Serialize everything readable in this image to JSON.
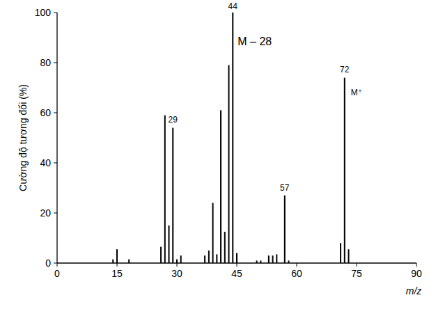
{
  "chart_data": {
    "type": "bar",
    "x_label": "m/z",
    "y_label": "Cường độ tương đối (%)",
    "x": [
      14,
      15,
      18,
      26,
      27,
      28,
      29,
      30,
      31,
      37,
      38,
      39,
      40,
      41,
      42,
      43,
      44,
      45,
      50,
      51,
      53,
      54,
      55,
      57,
      58,
      71,
      72,
      73
    ],
    "values": [
      1.5,
      5.5,
      1.5,
      6.5,
      59,
      15,
      54,
      1.5,
      3,
      3,
      5,
      24,
      3.5,
      61,
      12.5,
      79,
      100,
      4,
      1,
      1,
      3,
      3,
      3.5,
      27,
      1,
      8,
      74,
      5.5
    ],
    "color": "#000000",
    "xlim": [
      0,
      90
    ],
    "xticks": [
      0,
      15,
      30,
      45,
      60,
      75,
      90
    ],
    "ylim": [
      0,
      100
    ],
    "yticks": [
      0,
      20,
      40,
      60,
      80,
      100
    ],
    "grid": false,
    "annotations": [
      {
        "text": "29",
        "x": 29,
        "y": 56
      },
      {
        "text": "44",
        "x": 44,
        "y": 101.5
      },
      {
        "text": "M – 28",
        "x": 49.5,
        "y": 87
      },
      {
        "text": "57",
        "x": 57,
        "y": 29
      },
      {
        "text": "72",
        "x": 72,
        "y": 76
      },
      {
        "text": "M⁺",
        "x": 75,
        "y": 67
      }
    ]
  }
}
